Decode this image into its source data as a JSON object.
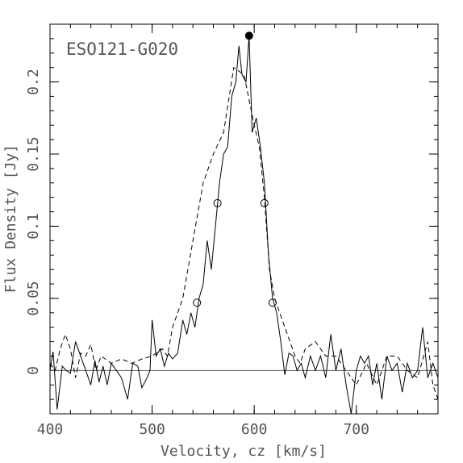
{
  "chart_data": {
    "type": "line",
    "annotation": "ESO121-G020",
    "xlabel": "Velocity, cz [km/s]",
    "ylabel": "Flux Density [Jy]",
    "xlim": [
      400,
      780
    ],
    "xticks": [
      400,
      500,
      600,
      700
    ],
    "ylim": [
      -0.03,
      0.24
    ],
    "yticks": [
      0,
      0.05,
      0.1,
      0.15,
      0.2
    ],
    "zero_line": true,
    "series": [
      {
        "style": "solid",
        "color": "#000000",
        "x": [
          400,
          403,
          407,
          412,
          416,
          420,
          425,
          430,
          435,
          440,
          444,
          448,
          452,
          456,
          460,
          465,
          470,
          476,
          481,
          486,
          490,
          495,
          498,
          500,
          504,
          508,
          512,
          516,
          520,
          525,
          530,
          534,
          538,
          542,
          546,
          550,
          554,
          558,
          562,
          566,
          570,
          574,
          578,
          582,
          585,
          588,
          592,
          595,
          598,
          602,
          606,
          610,
          614,
          618,
          622,
          626,
          630,
          634,
          638,
          642,
          646,
          650,
          655,
          660,
          665,
          670,
          675,
          680,
          685,
          690,
          695,
          700,
          704,
          708,
          712,
          716,
          720,
          725,
          730,
          735,
          740,
          745,
          750,
          755,
          760,
          765,
          770,
          775,
          780
        ],
        "values": [
          0,
          0.013,
          -0.027,
          0.003,
          0,
          -0.002,
          0.02,
          0.01,
          0,
          -0.01,
          0.007,
          -0.008,
          0.003,
          -0.01,
          0.005,
          0,
          -0.005,
          -0.02,
          0.005,
          0.003,
          -0.012,
          -0.005,
          0,
          0.035,
          0.01,
          0.015,
          0.003,
          0.012,
          0.008,
          0.012,
          0.035,
          0.025,
          0.04,
          0.03,
          0.05,
          0.06,
          0.09,
          0.07,
          0.1,
          0.13,
          0.15,
          0.155,
          0.19,
          0.2,
          0.225,
          0.205,
          0.2,
          0.232,
          0.165,
          0.175,
          0.155,
          0.13,
          0.08,
          0.05,
          0.04,
          0.02,
          -0.003,
          0.012,
          0.01,
          0,
          0.005,
          -0.005,
          0.01,
          0,
          0.01,
          -0.005,
          0.025,
          0,
          0.015,
          -0.01,
          -0.03,
          0,
          0.01,
          0.005,
          0.01,
          -0.01,
          0.005,
          -0.02,
          0.01,
          0,
          0.005,
          -0.015,
          0.005,
          -0.005,
          0,
          0.03,
          -0.005,
          0.005,
          -0.005
        ]
      },
      {
        "style": "dashed",
        "color": "#000000",
        "x": [
          400,
          405,
          410,
          415,
          420,
          425,
          430,
          435,
          440,
          445,
          450,
          460,
          470,
          480,
          490,
          500,
          510,
          515,
          520,
          530,
          540,
          550,
          560,
          570,
          580,
          590,
          600,
          605,
          610,
          615,
          620,
          630,
          640,
          645,
          650,
          660,
          670,
          680,
          690,
          700,
          710,
          720,
          730,
          740,
          750,
          760,
          770,
          775,
          780
        ],
        "values": [
          0.005,
          0,
          0.015,
          0.025,
          0.015,
          -0.005,
          0.012,
          0.01,
          0.018,
          0,
          0.01,
          0.005,
          0.008,
          0.005,
          0.008,
          0.01,
          0.015,
          0.01,
          0.03,
          0.05,
          0.09,
          0.13,
          0.15,
          0.165,
          0.21,
          0.205,
          0.17,
          0.155,
          0.12,
          0.07,
          0.05,
          0.03,
          0.01,
          0.005,
          0.015,
          0.02,
          0.01,
          0.01,
          0,
          -0.01,
          0.005,
          -0.01,
          0.01,
          0.01,
          0,
          -0.005,
          0.02,
          -0.01,
          -0.02
        ]
      }
    ],
    "points": {
      "x": [
        595,
        544,
        564,
        610,
        618
      ],
      "values": [
        0.232,
        0.047,
        0.116,
        0.116,
        0.047
      ],
      "filled": [
        true,
        false,
        false,
        false,
        false
      ]
    }
  }
}
